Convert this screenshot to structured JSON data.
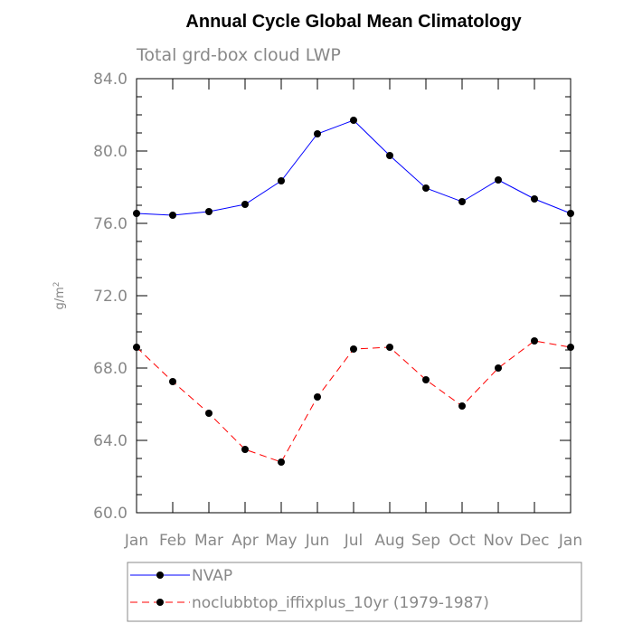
{
  "chart_data": {
    "type": "line",
    "title": "Annual Cycle Global Mean Climatology",
    "subtitle": "Total grd-box cloud LWP",
    "xlabel": "",
    "ylabel": "g/m",
    "ylabel_sup": "2",
    "categories": [
      "Jan",
      "Feb",
      "Mar",
      "Apr",
      "May",
      "Jun",
      "Jul",
      "Aug",
      "Sep",
      "Oct",
      "Nov",
      "Dec",
      "Jan"
    ],
    "ylim": [
      60.0,
      84.0
    ],
    "yticks": [
      "60.0",
      "64.0",
      "68.0",
      "72.0",
      "76.0",
      "80.0",
      "84.0"
    ],
    "series": [
      {
        "name": "NVAP",
        "color": "#0000ff",
        "style": "solid",
        "values": [
          76.55,
          76.45,
          76.65,
          77.05,
          78.35,
          80.95,
          81.7,
          79.75,
          77.95,
          77.2,
          78.4,
          77.35,
          76.55
        ]
      },
      {
        "name": "noclubbtop_iffixplus_10yr (1979-1987)",
        "color": "#ff0000",
        "style": "dashed",
        "values": [
          69.15,
          67.25,
          65.5,
          63.5,
          62.8,
          66.4,
          69.05,
          69.15,
          67.35,
          65.9,
          68.0,
          69.5,
          69.15
        ]
      }
    ],
    "legend_position": "bottom",
    "grid": false
  }
}
